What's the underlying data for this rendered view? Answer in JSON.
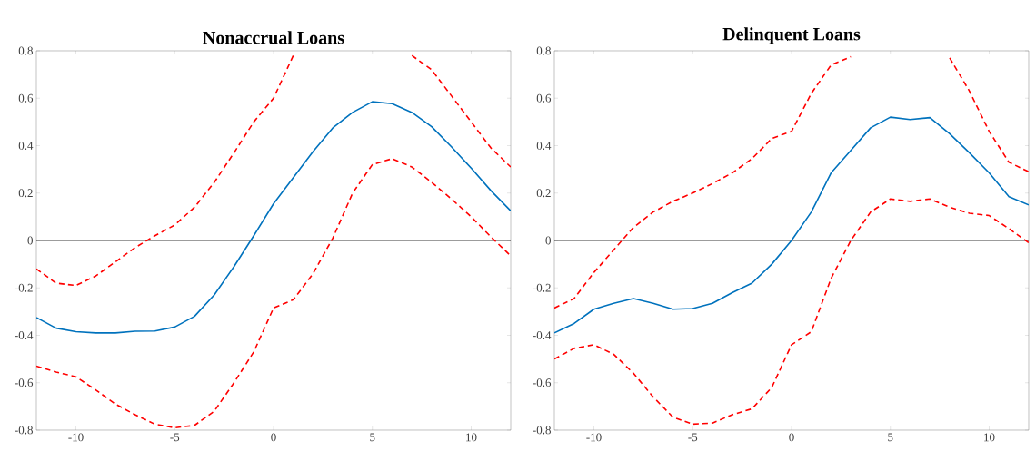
{
  "chart_data": [
    {
      "type": "line",
      "title": "Nonaccrual Loans",
      "x": [
        -12,
        -11,
        -10,
        -9,
        -8,
        -7,
        -6,
        -5,
        -4,
        -3,
        -2,
        -1,
        0,
        1,
        2,
        3,
        4,
        5,
        6,
        7,
        8,
        9,
        10,
        11,
        12
      ],
      "series": [
        {
          "color": "#0072bd",
          "line_style": "solid",
          "values": [
            -0.325,
            -0.37,
            -0.385,
            -0.39,
            -0.39,
            -0.383,
            -0.382,
            -0.365,
            -0.32,
            -0.23,
            -0.11,
            0.02,
            0.155,
            0.265,
            0.375,
            0.475,
            0.54,
            0.585,
            0.577,
            0.54,
            0.48,
            0.395,
            0.305,
            0.21,
            0.125
          ]
        },
        {
          "color": "#ff0000",
          "line_style": "dashed",
          "values": [
            -0.12,
            -0.18,
            -0.19,
            -0.15,
            -0.09,
            -0.03,
            0.02,
            0.065,
            0.14,
            0.245,
            0.37,
            0.5,
            0.6,
            0.78,
            null,
            null,
            null,
            null,
            null,
            0.78,
            0.72,
            0.61,
            0.5,
            0.39,
            0.31
          ]
        },
        {
          "color": "#ff0000",
          "line_style": "dashed",
          "values": [
            -0.53,
            -0.555,
            -0.575,
            -0.63,
            -0.69,
            -0.735,
            -0.775,
            -0.79,
            -0.78,
            -0.72,
            -0.6,
            -0.47,
            -0.285,
            -0.25,
            -0.14,
            0.01,
            0.2,
            0.32,
            0.345,
            0.31,
            0.245,
            0.175,
            0.1,
            0.015,
            -0.065
          ]
        }
      ],
      "xlim": [
        -12,
        12
      ],
      "ylim": [
        -0.8,
        0.8
      ],
      "xticks": [
        -10,
        -5,
        0,
        5,
        10
      ],
      "yticks": [
        -0.8,
        -0.6,
        -0.4,
        -0.2,
        0,
        0.2,
        0.4,
        0.6,
        0.8
      ],
      "marker": "none",
      "grid": false,
      "ref_lines": [
        {
          "axis": "y",
          "value": 0,
          "color": "#000000"
        }
      ]
    },
    {
      "type": "line",
      "title": "Delinquent Loans",
      "x": [
        -12,
        -11,
        -10,
        -9,
        -8,
        -7,
        -6,
        -5,
        -4,
        -3,
        -2,
        -1,
        0,
        1,
        2,
        3,
        4,
        5,
        6,
        7,
        8,
        9,
        10,
        11,
        12
      ],
      "series": [
        {
          "color": "#0072bd",
          "line_style": "solid",
          "values": [
            -0.39,
            -0.35,
            -0.29,
            -0.265,
            -0.245,
            -0.265,
            -0.29,
            -0.287,
            -0.265,
            -0.22,
            -0.18,
            -0.1,
            0.0,
            0.12,
            0.285,
            0.38,
            0.475,
            0.52,
            0.51,
            0.518,
            0.45,
            0.37,
            0.285,
            0.185,
            0.15
          ]
        },
        {
          "color": "#ff0000",
          "line_style": "dashed",
          "values": [
            -0.285,
            -0.245,
            -0.135,
            -0.04,
            0.055,
            0.12,
            0.165,
            0.2,
            0.24,
            0.285,
            0.345,
            0.43,
            0.46,
            0.62,
            0.74,
            0.775,
            null,
            null,
            null,
            null,
            0.77,
            0.63,
            0.46,
            0.33,
            0.29
          ]
        },
        {
          "color": "#ff0000",
          "line_style": "dashed",
          "values": [
            -0.5,
            -0.455,
            -0.44,
            -0.48,
            -0.56,
            -0.66,
            -0.745,
            -0.775,
            -0.77,
            -0.735,
            -0.71,
            -0.62,
            -0.44,
            -0.385,
            -0.16,
            0.0,
            0.12,
            0.175,
            0.165,
            0.175,
            0.14,
            0.115,
            0.105,
            0.05,
            -0.01
          ]
        }
      ],
      "xlim": [
        -12,
        12
      ],
      "ylim": [
        -0.8,
        0.8
      ],
      "xticks": [
        -10,
        -5,
        0,
        5,
        10
      ],
      "yticks": [
        -0.8,
        -0.6,
        -0.4,
        -0.2,
        0,
        0.2,
        0.4,
        0.6,
        0.8
      ],
      "marker": "none",
      "grid": false,
      "ref_lines": [
        {
          "axis": "y",
          "value": 0,
          "color": "#000000"
        }
      ]
    }
  ]
}
